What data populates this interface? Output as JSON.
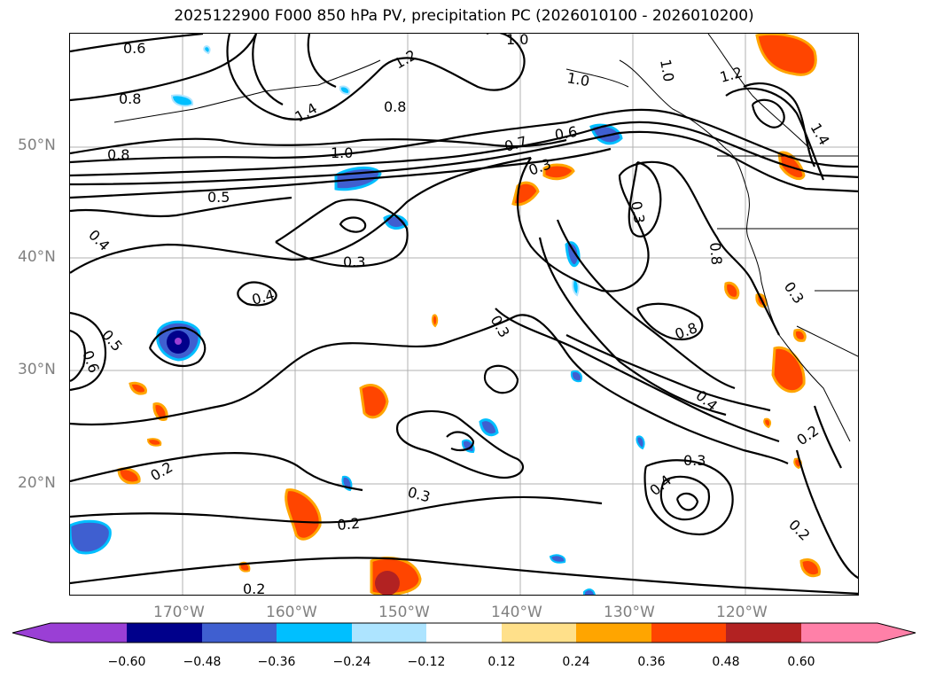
{
  "title": "2025122900 F000 850 hPa PV, precipitation PC (2026010100 - 2026010200)",
  "lat_ticks": [
    "50°N",
    "40°N",
    "30°N",
    "20°N"
  ],
  "lon_ticks": [
    "170°W",
    "160°W",
    "150°W",
    "140°W",
    "130°W",
    "120°W"
  ],
  "colorbar": {
    "tick_labels": [
      "−0.60",
      "−0.48",
      "−0.36",
      "−0.24",
      "−0.12",
      "0.12",
      "0.24",
      "0.36",
      "0.48",
      "0.60"
    ],
    "colors": [
      "#9a3fd5",
      "#00008b",
      "#3f5fd0",
      "#00bfff",
      "#ade4ff",
      "#ffffff",
      "#ffe08a",
      "#ffa500",
      "#ff4500",
      "#b22222",
      "#ff80a8"
    ]
  },
  "contour_labels": [
    "0.6",
    "0.8",
    "0.8",
    "1.0",
    "1.4",
    "1.2",
    "0.8",
    "1.0",
    "1.0",
    "1.0",
    "1.2",
    "0.7",
    "0.6",
    "0.3",
    "0.5",
    "0.4",
    "0.3",
    "0.4",
    "0.5",
    "0.6",
    "0.3",
    "0.3",
    "0.8",
    "0.8",
    "0.3",
    "0.4",
    "0.2",
    "0.3",
    "0.4",
    "0.3",
    "0.2",
    "0.2",
    "0.2",
    "0.2",
    "1.4"
  ]
}
